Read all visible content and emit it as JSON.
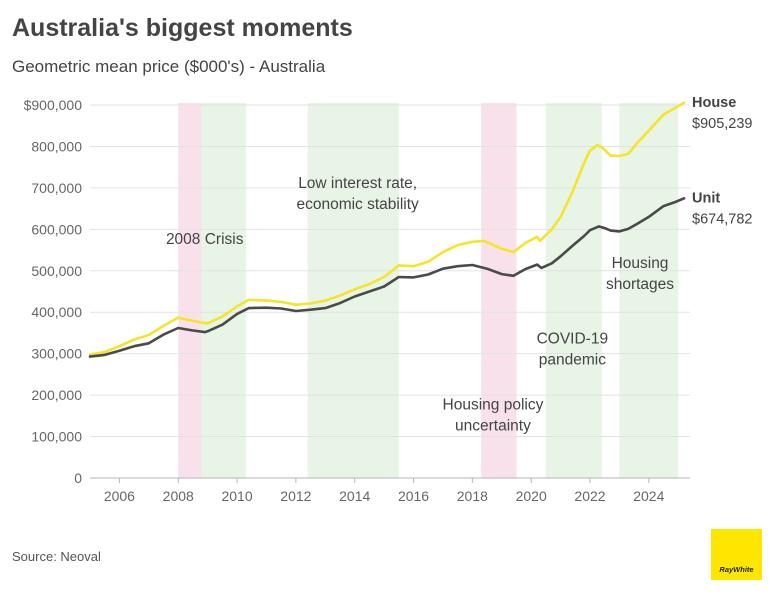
{
  "title": "Australia's biggest moments",
  "subtitle": "Geometric mean price ($000's) - Australia",
  "source": "Source: Neoval",
  "logo_text": "RayWhite",
  "colors": {
    "house": "#f5e52a",
    "unit": "#4a4a4a",
    "crisis": "#f8e1ea",
    "growth": "#e8f4e6",
    "logo": "#ffe600"
  },
  "chart_data": {
    "type": "line",
    "title": "Australia's biggest moments",
    "subtitle": "Geometric mean price ($000's) - Australia",
    "xlabel": "",
    "ylabel": "",
    "xlim": [
      2005.0,
      2025.4
    ],
    "ylim": [
      0,
      900000
    ],
    "grid": true,
    "y_ticks": [
      0,
      100000,
      200000,
      300000,
      400000,
      500000,
      600000,
      700000,
      800000,
      900000
    ],
    "y_tick_labels": [
      "0",
      "100,000",
      "200,000",
      "300,000",
      "400,000",
      "500,000",
      "600,000",
      "700,000",
      "800,000",
      "$900,000"
    ],
    "x_ticks": [
      2006,
      2008,
      2010,
      2012,
      2014,
      2016,
      2018,
      2020,
      2022,
      2024
    ],
    "x_tick_labels": [
      "2006",
      "2008",
      "2010",
      "2012",
      "2014",
      "2016",
      "2018",
      "2020",
      "2022",
      "2024"
    ],
    "series": [
      {
        "name": "House",
        "end_label": "$905,239",
        "color": "#f5e52a",
        "points": [
          [
            2005.0,
            298000
          ],
          [
            2005.5,
            304000
          ],
          [
            2006.0,
            318000
          ],
          [
            2006.5,
            334000
          ],
          [
            2007.0,
            345000
          ],
          [
            2007.5,
            367000
          ],
          [
            2008.0,
            387000
          ],
          [
            2008.3,
            382000
          ],
          [
            2008.8,
            375000
          ],
          [
            2009.0,
            373000
          ],
          [
            2009.5,
            390000
          ],
          [
            2010.0,
            414000
          ],
          [
            2010.4,
            430000
          ],
          [
            2011.0,
            428000
          ],
          [
            2011.5,
            425000
          ],
          [
            2012.0,
            418000
          ],
          [
            2012.5,
            421000
          ],
          [
            2013.0,
            428000
          ],
          [
            2013.5,
            440000
          ],
          [
            2014.0,
            455000
          ],
          [
            2014.5,
            468000
          ],
          [
            2015.0,
            485000
          ],
          [
            2015.5,
            513000
          ],
          [
            2016.0,
            511000
          ],
          [
            2016.5,
            522000
          ],
          [
            2017.0,
            545000
          ],
          [
            2017.5,
            562000
          ],
          [
            2018.0,
            570000
          ],
          [
            2018.4,
            572000
          ],
          [
            2019.0,
            553000
          ],
          [
            2019.4,
            545000
          ],
          [
            2019.8,
            567000
          ],
          [
            2020.2,
            582000
          ],
          [
            2020.3,
            572000
          ],
          [
            2020.7,
            600000
          ],
          [
            2021.0,
            630000
          ],
          [
            2021.4,
            690000
          ],
          [
            2021.8,
            760000
          ],
          [
            2022.0,
            790000
          ],
          [
            2022.25,
            803000
          ],
          [
            2022.4,
            798000
          ],
          [
            2022.7,
            778000
          ],
          [
            2023.0,
            777000
          ],
          [
            2023.3,
            782000
          ],
          [
            2023.6,
            808000
          ],
          [
            2024.0,
            838000
          ],
          [
            2024.5,
            877000
          ],
          [
            2024.9,
            893000
          ],
          [
            2025.2,
            905239
          ]
        ]
      },
      {
        "name": "Unit",
        "end_label": "$674,782",
        "color": "#4a4a4a",
        "points": [
          [
            2005.0,
            293000
          ],
          [
            2005.5,
            297000
          ],
          [
            2006.0,
            307000
          ],
          [
            2006.5,
            318000
          ],
          [
            2007.0,
            325000
          ],
          [
            2007.5,
            346000
          ],
          [
            2008.0,
            362000
          ],
          [
            2008.5,
            356000
          ],
          [
            2008.9,
            352000
          ],
          [
            2009.0,
            354000
          ],
          [
            2009.5,
            370000
          ],
          [
            2010.0,
            396000
          ],
          [
            2010.4,
            410000
          ],
          [
            2011.0,
            411000
          ],
          [
            2011.5,
            409000
          ],
          [
            2012.0,
            403000
          ],
          [
            2012.5,
            406000
          ],
          [
            2013.0,
            410000
          ],
          [
            2013.5,
            422000
          ],
          [
            2014.0,
            438000
          ],
          [
            2014.5,
            450000
          ],
          [
            2015.0,
            462000
          ],
          [
            2015.5,
            485000
          ],
          [
            2016.0,
            484000
          ],
          [
            2016.5,
            491000
          ],
          [
            2017.0,
            505000
          ],
          [
            2017.5,
            511000
          ],
          [
            2018.0,
            514000
          ],
          [
            2018.5,
            505000
          ],
          [
            2019.0,
            492000
          ],
          [
            2019.4,
            488000
          ],
          [
            2019.8,
            504000
          ],
          [
            2020.2,
            515000
          ],
          [
            2020.35,
            507000
          ],
          [
            2020.7,
            518000
          ],
          [
            2021.0,
            535000
          ],
          [
            2021.4,
            560000
          ],
          [
            2021.8,
            584000
          ],
          [
            2022.0,
            598000
          ],
          [
            2022.3,
            607000
          ],
          [
            2022.5,
            603000
          ],
          [
            2022.7,
            597000
          ],
          [
            2023.0,
            595000
          ],
          [
            2023.3,
            601000
          ],
          [
            2023.6,
            613000
          ],
          [
            2024.0,
            630000
          ],
          [
            2024.5,
            656000
          ],
          [
            2024.9,
            666000
          ],
          [
            2025.2,
            674782
          ]
        ]
      }
    ],
    "bands": [
      {
        "start": 2008.0,
        "end": 2008.8,
        "kind": "crisis"
      },
      {
        "start": 2008.8,
        "end": 2010.3,
        "kind": "growth"
      },
      {
        "start": 2012.4,
        "end": 2015.5,
        "kind": "growth"
      },
      {
        "start": 2018.3,
        "end": 2019.5,
        "kind": "crisis"
      },
      {
        "start": 2020.5,
        "end": 2022.4,
        "kind": "growth"
      },
      {
        "start": 2023.0,
        "end": 2025.0,
        "kind": "growth"
      }
    ],
    "annotations": [
      {
        "lines": [
          "2008 Crisis"
        ],
        "x": 2008.9,
        "y": 565000
      },
      {
        "lines": [
          "Low interest rate,",
          "economic stability"
        ],
        "x": 2014.1,
        "y": 700000
      },
      {
        "lines": [
          "Housing policy",
          "uncertainty"
        ],
        "x": 2018.7,
        "y": 165000
      },
      {
        "lines": [
          "COVID-19",
          "pandemic"
        ],
        "x": 2021.4,
        "y": 325000
      },
      {
        "lines": [
          "Housing",
          "shortages"
        ],
        "x": 2023.7,
        "y": 507000
      }
    ]
  }
}
